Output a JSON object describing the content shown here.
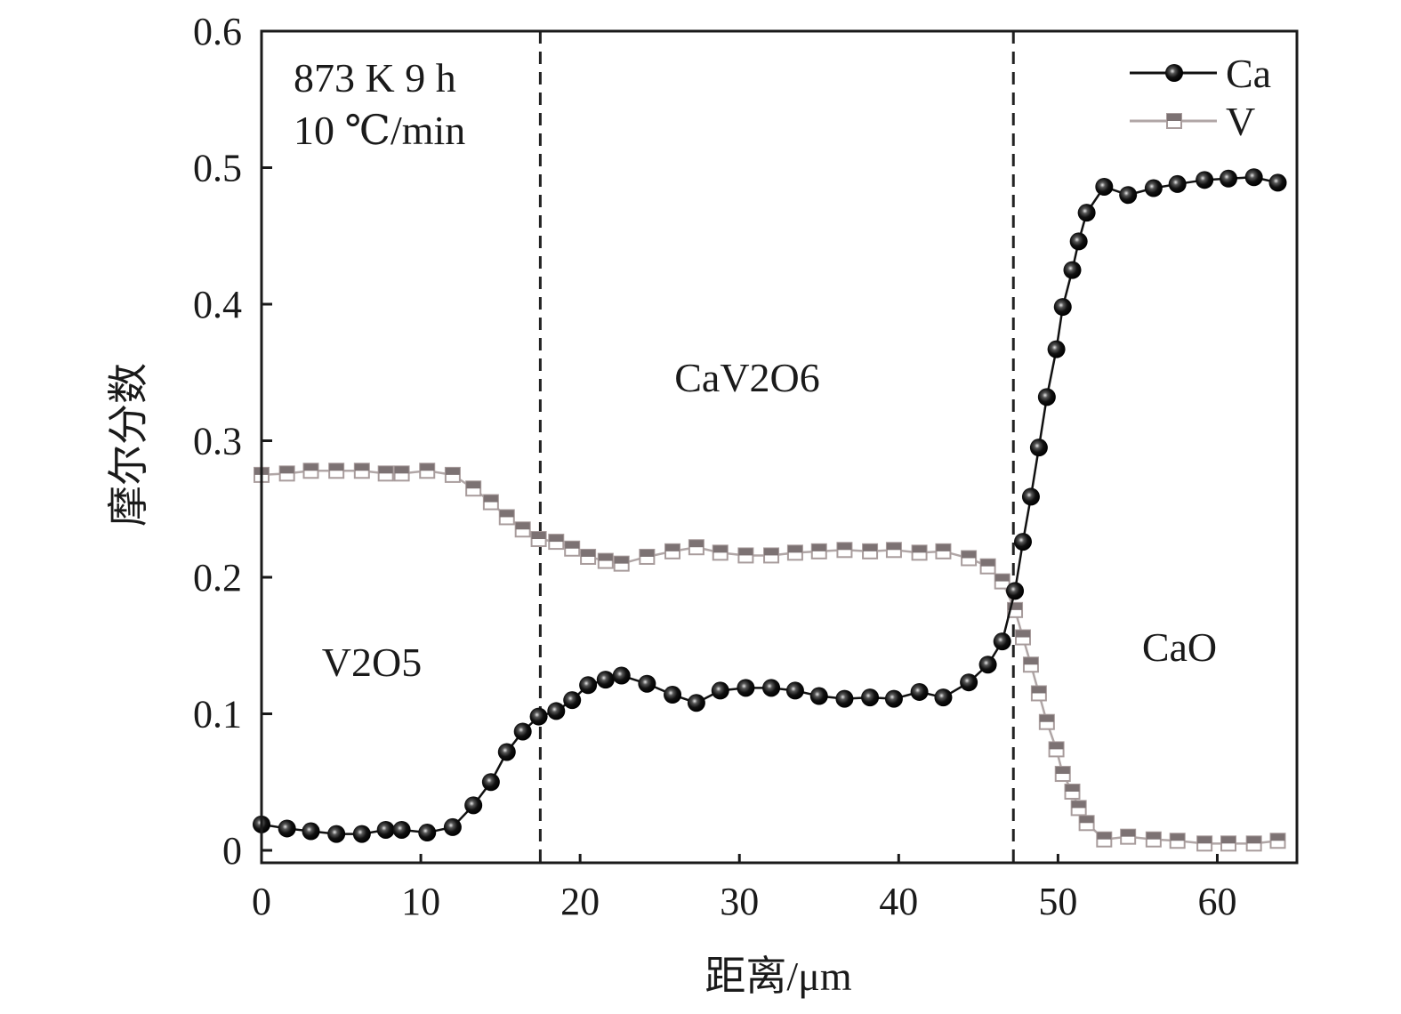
{
  "chart_data": {
    "type": "line",
    "xlabel": "距离/μm",
    "ylabel": "摩尔分数",
    "xlim": [
      0,
      65
    ],
    "ylim": [
      -0.009,
      0.6
    ],
    "xticks": [
      "0",
      "10",
      "20",
      "30",
      "40",
      "50",
      "60"
    ],
    "yticks": [
      "0",
      "0.1",
      "0.2",
      "0.3",
      "0.4",
      "0.5",
      "0.6"
    ],
    "grid": false,
    "legend_position": "top-right",
    "conditions": [
      "873 K 9 h",
      "10 ℃/min"
    ],
    "phase_boundaries": [
      17.5,
      47.2
    ],
    "phase_labels": [
      {
        "text": "V2O5",
        "x": 7,
        "y": 0.135
      },
      {
        "text": "CaV2O6",
        "x": 30.5,
        "y": 0.335
      },
      {
        "text": "CaO",
        "x": 57,
        "y": 0.15
      }
    ],
    "x": [
      0,
      1.6,
      3.1,
      4.7,
      6.3,
      7.8,
      8.8,
      10.4,
      12,
      13.3,
      14.4,
      15.4,
      16.4,
      17.4,
      18.5,
      19.5,
      20.5,
      21.6,
      22.6,
      24.2,
      25.8,
      27.3,
      28.8,
      30.4,
      32,
      33.5,
      35,
      36.6,
      38.2,
      39.7,
      41.3,
      42.8,
      44.4,
      45.6,
      46.5,
      47.3,
      47.8,
      48.3,
      48.8,
      49.3,
      49.9,
      50.3,
      50.9,
      51.3,
      51.8,
      52.9,
      54.4,
      56,
      57.5,
      59.2,
      60.7,
      62.3,
      63.8
    ],
    "series": [
      {
        "name": "Ca",
        "color": "#111111",
        "marker": "sphere",
        "values": [
          0.019,
          0.016,
          0.014,
          0.012,
          0.012,
          0.015,
          0.015,
          0.013,
          0.017,
          0.033,
          0.05,
          0.072,
          0.087,
          0.098,
          0.102,
          0.11,
          0.121,
          0.125,
          0.128,
          0.122,
          0.114,
          0.108,
          0.117,
          0.119,
          0.119,
          0.117,
          0.113,
          0.111,
          0.112,
          0.111,
          0.116,
          0.112,
          0.123,
          0.136,
          0.153,
          0.19,
          0.226,
          0.259,
          0.295,
          0.332,
          0.367,
          0.398,
          0.425,
          0.446,
          0.467,
          0.486,
          0.48,
          0.485,
          0.488,
          0.491,
          0.492,
          0.493,
          0.489
        ]
      },
      {
        "name": "V",
        "color": "#8a8081",
        "marker": "half-filled-square",
        "values": [
          0.275,
          0.276,
          0.278,
          0.278,
          0.278,
          0.276,
          0.276,
          0.278,
          0.275,
          0.265,
          0.255,
          0.244,
          0.235,
          0.228,
          0.226,
          0.221,
          0.215,
          0.212,
          0.21,
          0.215,
          0.219,
          0.222,
          0.218,
          0.216,
          0.216,
          0.218,
          0.219,
          0.22,
          0.219,
          0.22,
          0.218,
          0.219,
          0.214,
          0.208,
          0.197,
          0.176,
          0.156,
          0.136,
          0.115,
          0.094,
          0.074,
          0.056,
          0.043,
          0.031,
          0.02,
          0.008,
          0.01,
          0.008,
          0.007,
          0.005,
          0.005,
          0.005,
          0.007
        ]
      }
    ]
  }
}
